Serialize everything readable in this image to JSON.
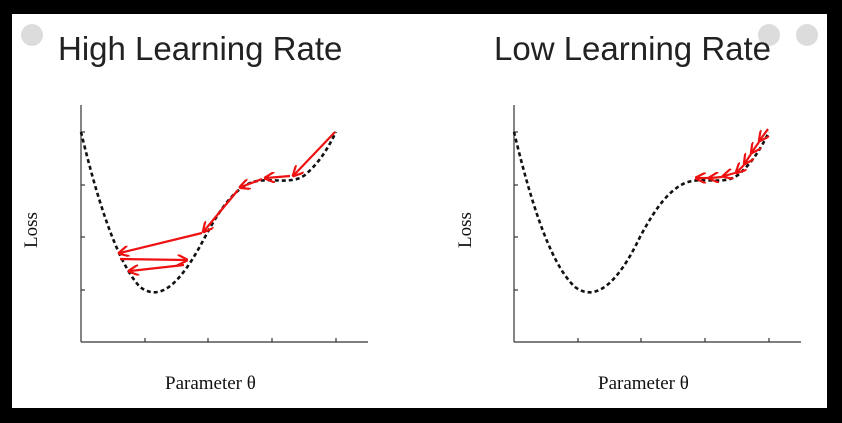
{
  "panels": [
    {
      "title": "High Learning Rate",
      "ylabel": "Loss",
      "xlabel": "Parameter θ"
    },
    {
      "title": "Low Learning Rate",
      "ylabel": "Loss",
      "xlabel": "Parameter θ"
    }
  ],
  "colors": {
    "curve": "#111111",
    "arrow": "#ee1111",
    "axis": "#333333"
  }
}
